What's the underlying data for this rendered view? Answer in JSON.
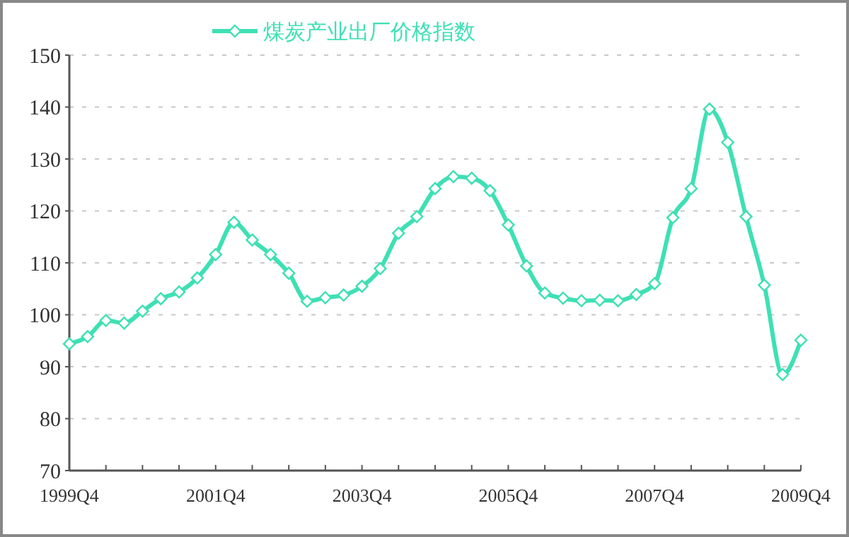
{
  "chart_data": {
    "type": "line",
    "categories": [
      "1999Q4",
      null,
      null,
      null,
      null,
      null,
      null,
      null,
      "2001Q4",
      null,
      null,
      null,
      null,
      null,
      null,
      null,
      "2003Q4",
      null,
      null,
      null,
      null,
      null,
      null,
      null,
      "2005Q4",
      null,
      null,
      null,
      null,
      null,
      null,
      null,
      "2007Q4",
      null,
      null,
      null,
      null,
      null,
      null,
      null,
      "2009Q4"
    ],
    "series": [
      {
        "name": "煤炭产业出厂价格指数",
        "color": "#3ee0b4",
        "values": [
          94.4,
          95.8,
          98.9,
          98.4,
          100.7,
          103.1,
          104.4,
          107.1,
          111.6,
          117.8,
          114.4,
          111.6,
          108.0,
          102.6,
          103.3,
          103.8,
          105.5,
          108.9,
          115.7,
          118.9,
          124.3,
          126.6,
          126.3,
          123.9,
          117.3,
          109.4,
          104.2,
          103.2,
          102.7,
          102.8,
          102.7,
          103.9,
          106.0,
          118.7,
          124.3,
          139.6,
          133.2,
          118.9,
          105.7,
          88.5,
          95.1
        ]
      }
    ],
    "ylim": [
      70,
      150
    ],
    "yticks": [
      70,
      80,
      90,
      100,
      110,
      120,
      130,
      140,
      150
    ],
    "grid": "y",
    "legend": "top",
    "marker": "diamond",
    "line_style": "solid"
  }
}
